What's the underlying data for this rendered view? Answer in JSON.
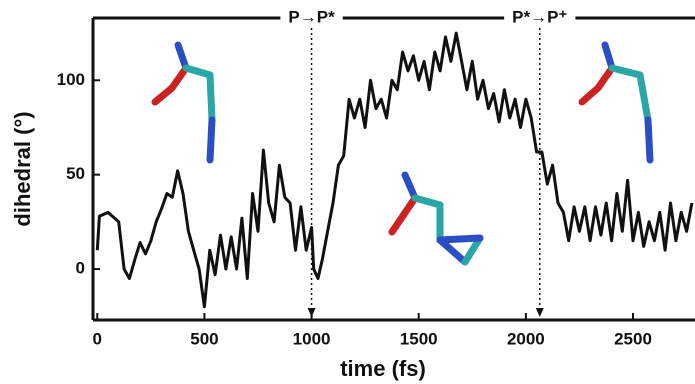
{
  "chart_data": {
    "type": "line",
    "x_label": "time (fs)",
    "y_label": "dihedral (°)",
    "xlim": [
      -20,
      2780
    ],
    "ylim": [
      -27,
      133
    ],
    "xticks": [
      0,
      500,
      1000,
      1500,
      2000,
      2500
    ],
    "yticks": [
      0,
      50,
      100
    ],
    "annotations": [
      {
        "text": "P→P*",
        "x": 1000
      },
      {
        "text": "P*→P⁺",
        "x": 2065
      }
    ],
    "x": [
      0,
      10,
      50,
      100,
      125,
      150,
      175,
      200,
      225,
      250,
      275,
      300,
      325,
      350,
      375,
      400,
      425,
      450,
      475,
      500,
      525,
      550,
      575,
      600,
      625,
      650,
      675,
      700,
      725,
      750,
      775,
      800,
      825,
      850,
      875,
      900,
      925,
      950,
      975,
      1000,
      1010,
      1030,
      1050,
      1075,
      1100,
      1125,
      1150,
      1175,
      1200,
      1225,
      1250,
      1275,
      1300,
      1325,
      1350,
      1375,
      1400,
      1425,
      1450,
      1475,
      1500,
      1525,
      1550,
      1575,
      1600,
      1625,
      1650,
      1675,
      1700,
      1725,
      1750,
      1775,
      1800,
      1825,
      1850,
      1875,
      1900,
      1925,
      1950,
      1975,
      2000,
      2025,
      2050,
      2075,
      2100,
      2125,
      2150,
      2175,
      2200,
      2225,
      2250,
      2275,
      2300,
      2325,
      2350,
      2375,
      2400,
      2425,
      2450,
      2475,
      2500,
      2525,
      2550,
      2575,
      2600,
      2625,
      2650,
      2675,
      2700,
      2725,
      2750,
      2775
    ],
    "series": [
      {
        "color": "#111111",
        "values": [
          10,
          28,
          30,
          25,
          0,
          -5,
          5,
          14,
          8,
          15,
          25,
          32,
          40,
          38,
          52,
          40,
          20,
          10,
          0,
          -20,
          10,
          -3,
          18,
          0,
          17,
          0,
          27,
          -5,
          40,
          20,
          63,
          35,
          25,
          55,
          38,
          35,
          10,
          33,
          10,
          22,
          0,
          -5,
          5,
          20,
          35,
          55,
          60,
          90,
          80,
          90,
          75,
          100,
          85,
          90,
          80,
          100,
          95,
          115,
          105,
          113,
          100,
          110,
          95,
          115,
          105,
          123,
          110,
          125,
          110,
          95,
          110,
          90,
          100,
          85,
          93,
          78,
          95,
          80,
          90,
          75,
          90,
          80,
          62,
          62,
          45,
          55,
          35,
          30,
          15,
          33,
          20,
          33,
          15,
          33,
          18,
          35,
          15,
          40,
          20,
          47,
          15,
          30,
          12,
          25,
          15,
          30,
          10,
          35,
          15,
          30,
          20,
          35
        ]
      }
    ]
  }
}
